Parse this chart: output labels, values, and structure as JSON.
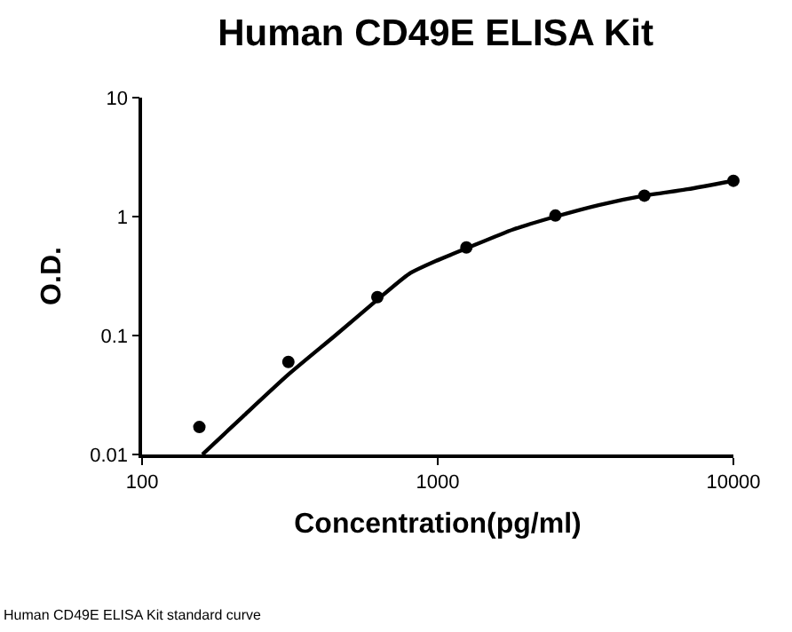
{
  "chart_data": {
    "type": "scatter",
    "title": "Human CD49E ELISA Kit",
    "xlabel": "Concentration(pg/ml)",
    "ylabel": "O.D.",
    "log": "xy",
    "grid": false,
    "marker": "circle",
    "xlim": [
      100,
      10000
    ],
    "xticks": [
      100,
      1000,
      10000
    ],
    "ylim": [
      0.01,
      10
    ],
    "yticks": [
      0.01,
      0.1,
      1,
      10
    ],
    "x": [
      156.25,
      312.5,
      625,
      1250,
      2500,
      5000,
      10000
    ],
    "series": [
      {
        "color": "#000000",
        "values": [
          0.017,
          0.06,
          0.21,
          0.55,
          1.02,
          1.5,
          2.0
        ]
      },
      {
        "type": "line",
        "color": "#000000",
        "marker": "none",
        "line_style": "solid",
        "x": [
          160,
          220,
          312.5,
          450,
          625,
          800,
          1000,
          1250,
          1800,
          2500,
          3500,
          5000,
          7000,
          10000
        ],
        "values": [
          0.01,
          0.021,
          0.047,
          0.1,
          0.2,
          0.33,
          0.43,
          0.54,
          0.78,
          1.0,
          1.25,
          1.5,
          1.7,
          2.0
        ]
      }
    ],
    "annotations": [
      "Human CD49E ELISA Kit standard curve"
    ]
  }
}
